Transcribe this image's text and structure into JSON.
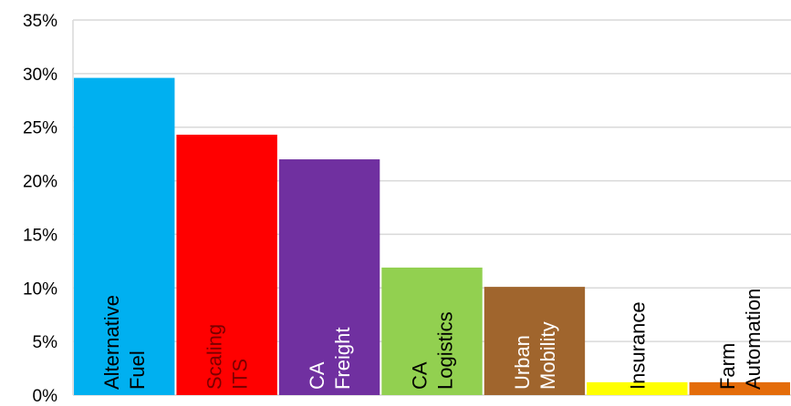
{
  "chart_data": {
    "type": "bar",
    "title": "",
    "xlabel": "",
    "ylabel": "",
    "ylim": [
      0,
      35
    ],
    "y_ticks": [
      "0%",
      "5%",
      "10%",
      "15%",
      "20%",
      "25%",
      "30%",
      "35%"
    ],
    "y_tick_values": [
      0,
      5,
      10,
      15,
      20,
      25,
      30,
      35
    ],
    "grid": true,
    "categories": [
      [
        "Alternative",
        "Fuel"
      ],
      [
        "Scaling",
        "ITS"
      ],
      [
        "CA",
        "Freight"
      ],
      [
        "CA",
        "Logistics"
      ],
      [
        "Urban",
        "Mobility"
      ],
      [
        "Insurance"
      ],
      [
        "Farm",
        "Automation"
      ]
    ],
    "values": [
      29.6,
      24.3,
      22.0,
      11.9,
      10.1,
      1.2,
      1.2
    ],
    "colors": [
      "#00b0f0",
      "#ff0000",
      "#7030a0",
      "#92d050",
      "#a0652d",
      "#ffff00",
      "#e46c0a"
    ],
    "label_colors": [
      "#000000",
      "#7a0000",
      "#ffffff",
      "#000000",
      "#ffffff",
      "#000000",
      "#000000"
    ],
    "gridline_color": "#d9d9d9"
  }
}
